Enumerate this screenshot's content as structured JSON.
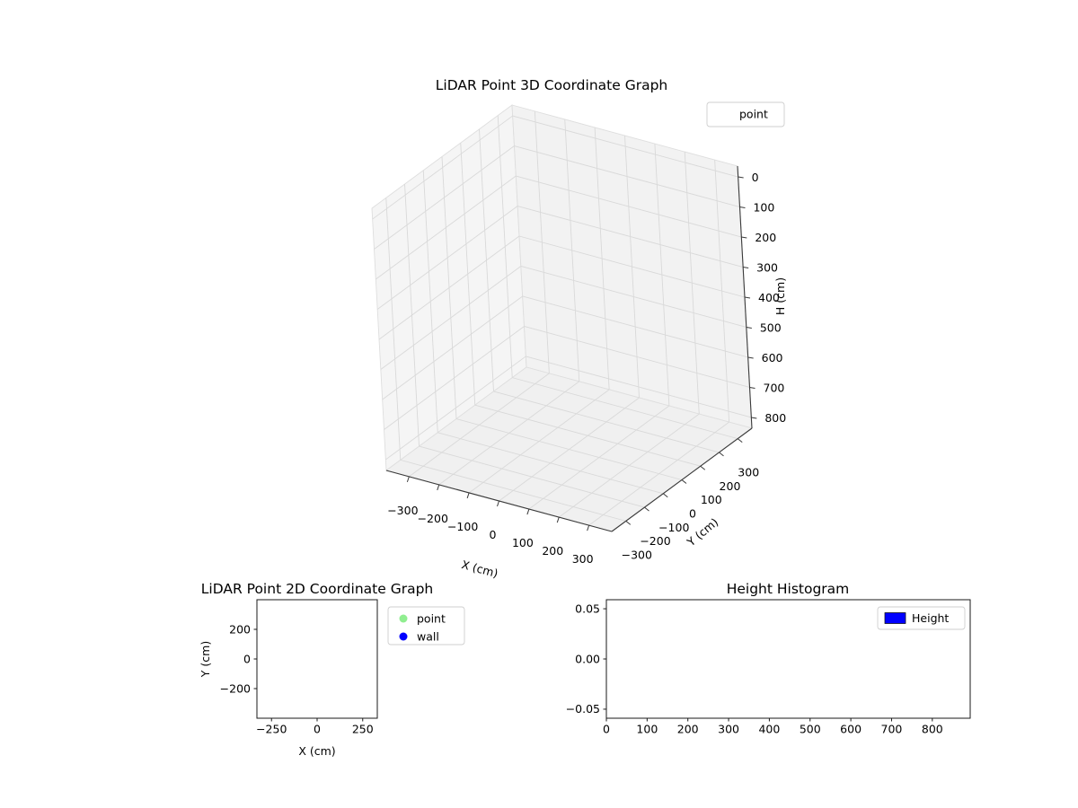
{
  "figure": {
    "background": "#ffffff"
  },
  "chart_data": [
    {
      "type": "scatter",
      "projection": "3d",
      "title": "LiDAR Point 3D Coordinate Graph",
      "xlabel": "X (cm)",
      "ylabel": "Y (cm)",
      "zlabel": "H (cm)",
      "xticks": [
        -300,
        -200,
        -100,
        0,
        100,
        200,
        300
      ],
      "xtick_labels": [
        "−300",
        "−200",
        "−100",
        "0",
        "100",
        "200",
        "300"
      ],
      "yticks": [
        -300,
        -200,
        -100,
        0,
        100,
        200,
        300
      ],
      "ytick_labels": [
        "−300",
        "−200",
        "−100",
        "0",
        "100",
        "200",
        "300"
      ],
      "zticks": [
        0,
        100,
        200,
        300,
        400,
        500,
        600,
        700,
        800
      ],
      "ztick_labels": [
        "0",
        "100",
        "200",
        "300",
        "400",
        "500",
        "600",
        "700",
        "800"
      ],
      "xlim": [
        -350,
        350
      ],
      "ylim": [
        -350,
        350
      ],
      "zlim": [
        0,
        800
      ],
      "zaxis_inverted": true,
      "grid": true,
      "pane_color": "#f2f2f2",
      "legend": {
        "position": "upper right",
        "entries": [
          {
            "label": "point",
            "points": []
          }
        ]
      },
      "series": [
        {
          "name": "point",
          "points": []
        }
      ]
    },
    {
      "type": "scatter",
      "title": "LiDAR Point 2D Coordinate Graph",
      "xlabel": "X (cm)",
      "ylabel": "Y (cm)",
      "xticks": [
        -250,
        0,
        250
      ],
      "xtick_labels": [
        "−250",
        "0",
        "250"
      ],
      "yticks": [
        200,
        0,
        -200
      ],
      "ytick_labels": [
        "200",
        "0",
        "−200"
      ],
      "xlim": [
        -330,
        330
      ],
      "ylim": [
        -400,
        400
      ],
      "grid": false,
      "legend": {
        "position": "outside upper right",
        "entries": [
          {
            "label": "point",
            "color": "#90ee90"
          },
          {
            "label": "wall",
            "color": "#0000ff"
          }
        ]
      },
      "series": [
        {
          "name": "point",
          "color": "#90ee90",
          "points": []
        },
        {
          "name": "wall",
          "color": "#0000ff",
          "points": []
        }
      ]
    },
    {
      "type": "bar",
      "subtype": "histogram",
      "title": "Height Histogram",
      "xlabel": "",
      "ylabel": "",
      "xticks": [
        0,
        100,
        200,
        300,
        400,
        500,
        600,
        700,
        800
      ],
      "xtick_labels": [
        "0",
        "100",
        "200",
        "300",
        "400",
        "500",
        "600",
        "700",
        "800"
      ],
      "yticks": [
        0.05,
        0,
        -0.05
      ],
      "ytick_labels": [
        "0.05",
        "0.00",
        "−0.05"
      ],
      "xlim": [
        0,
        893
      ],
      "ylim": [
        -0.059,
        0.059
      ],
      "grid": false,
      "legend": {
        "position": "upper right",
        "entries": [
          {
            "label": "Height",
            "color": "#0000ff"
          }
        ]
      },
      "series": [
        {
          "name": "Height",
          "color": "#0000ff",
          "values": []
        }
      ]
    }
  ]
}
